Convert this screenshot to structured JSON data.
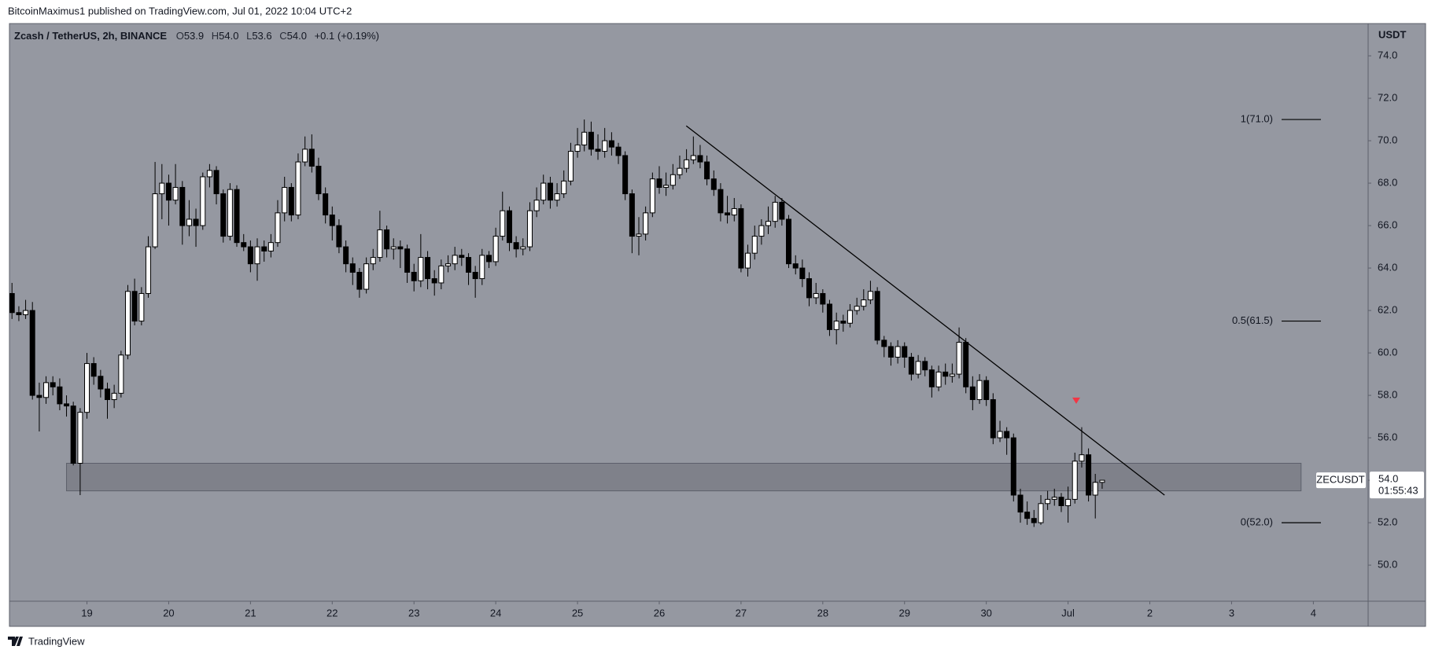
{
  "header": {
    "text": "BitcoinMaximus1 published on TradingView.com, Jul 01, 2022 10:04 UTC+2"
  },
  "chart_data": {
    "type": "candlestick",
    "legend": {
      "symbol": "Zcash / TetherUS, 2h, BINANCE",
      "items": [
        "O",
        "53.9",
        "H",
        "54.0",
        "L",
        "53.6",
        "C",
        "54.0",
        "+0.1 (+0.19%)"
      ]
    },
    "y_axis_label": "USDT",
    "colors": {
      "up": "#ffffff",
      "down": "#000000",
      "wick": "#000000",
      "background": "#9598a1"
    },
    "xlim": [
      18.052,
      34.67
    ],
    "xticks": [
      19,
      20,
      21,
      22,
      23,
      24,
      25,
      26,
      27,
      28,
      29,
      30,
      {
        "value": 31,
        "label": "Jul"
      },
      {
        "value": 32,
        "label": "2"
      },
      {
        "value": 33,
        "label": "3"
      },
      {
        "value": 34,
        "label": "4"
      }
    ],
    "ylim": [
      48.3,
      75.52
    ],
    "yticks": [
      {
        "value": 50,
        "label": "50.0"
      },
      {
        "value": 52,
        "label": "52.0"
      },
      {
        "value": 54,
        "label": "54.0"
      },
      {
        "value": 56,
        "label": "56.0"
      },
      {
        "value": 58,
        "label": "58.0"
      },
      {
        "value": 60,
        "label": "60.0"
      },
      {
        "value": 62,
        "label": "62.0"
      },
      {
        "value": 64,
        "label": "64.0"
      },
      {
        "value": 66,
        "label": "66.0"
      },
      {
        "value": 68,
        "label": "68.0"
      },
      {
        "value": 70,
        "label": "70.0"
      },
      {
        "value": 72,
        "label": "72.0"
      },
      {
        "value": 74,
        "label": "74.0"
      }
    ],
    "candles": [
      [
        18.083,
        62.8,
        63.3,
        61.6,
        61.9
      ],
      [
        18.167,
        61.9,
        62.2,
        61.5,
        61.8
      ],
      [
        18.25,
        61.8,
        62.5,
        61.6,
        62.0
      ],
      [
        18.333,
        62.0,
        62.4,
        57.8,
        58.0
      ],
      [
        18.417,
        58.0,
        58.6,
        56.3,
        57.9
      ],
      [
        18.5,
        57.9,
        58.9,
        57.6,
        58.6
      ],
      [
        18.583,
        58.6,
        58.9,
        58.0,
        58.4
      ],
      [
        18.667,
        58.4,
        58.8,
        57.3,
        57.6
      ],
      [
        18.75,
        57.6,
        58.0,
        57.0,
        57.5
      ],
      [
        18.833,
        57.5,
        57.7,
        54.7,
        54.8
      ],
      [
        18.917,
        54.8,
        57.4,
        53.3,
        57.2
      ],
      [
        19,
        57.2,
        60.0,
        56.9,
        59.5
      ],
      [
        19.083,
        59.5,
        59.8,
        58.5,
        58.9
      ],
      [
        19.167,
        58.9,
        59.2,
        57.9,
        58.3
      ],
      [
        19.25,
        58.3,
        58.6,
        56.9,
        57.8
      ],
      [
        19.333,
        57.8,
        58.5,
        57.4,
        58.1
      ],
      [
        19.417,
        58.1,
        60.1,
        57.9,
        59.9
      ],
      [
        19.5,
        59.9,
        63.2,
        59.7,
        62.9
      ],
      [
        19.583,
        62.9,
        63.5,
        61.3,
        61.5
      ],
      [
        19.667,
        61.5,
        63.1,
        61.3,
        62.8
      ],
      [
        19.75,
        62.8,
        65.5,
        62.6,
        65.0
      ],
      [
        19.833,
        65.0,
        69.0,
        64.9,
        67.5
      ],
      [
        19.917,
        67.5,
        68.9,
        66.3,
        68.0
      ],
      [
        20,
        68.0,
        68.4,
        66.0,
        67.2
      ],
      [
        20.083,
        67.2,
        68.9,
        67.0,
        67.8
      ],
      [
        20.167,
        67.8,
        68.1,
        65.1,
        66.0
      ],
      [
        20.25,
        66.0,
        67.2,
        65.5,
        66.3
      ],
      [
        20.333,
        66.3,
        66.8,
        65.0,
        66.0
      ],
      [
        20.417,
        66.0,
        68.5,
        65.8,
        68.3
      ],
      [
        20.5,
        68.3,
        68.9,
        67.8,
        68.6
      ],
      [
        20.583,
        68.6,
        68.8,
        67.0,
        67.5
      ],
      [
        20.667,
        67.5,
        67.7,
        65.2,
        65.5
      ],
      [
        20.75,
        65.5,
        68.0,
        65.3,
        67.7
      ],
      [
        20.833,
        67.7,
        67.9,
        65.0,
        65.2
      ],
      [
        20.917,
        65.2,
        65.6,
        64.8,
        65.0
      ],
      [
        21,
        65.0,
        65.3,
        63.8,
        64.2
      ],
      [
        21.083,
        64.2,
        65.4,
        63.4,
        65.0
      ],
      [
        21.167,
        65.0,
        65.3,
        64.3,
        64.8
      ],
      [
        21.25,
        64.8,
        65.6,
        64.5,
        65.2
      ],
      [
        21.333,
        65.2,
        67.2,
        65.0,
        66.6
      ],
      [
        21.417,
        66.6,
        68.3,
        66.2,
        67.8
      ],
      [
        21.5,
        67.8,
        68.0,
        66.2,
        66.5
      ],
      [
        21.583,
        66.5,
        69.4,
        66.3,
        69.0
      ],
      [
        21.667,
        69.0,
        70.2,
        68.8,
        69.6
      ],
      [
        21.75,
        69.6,
        70.3,
        68.5,
        68.8
      ],
      [
        21.833,
        68.8,
        69.2,
        67.2,
        67.5
      ],
      [
        21.917,
        67.5,
        67.8,
        66.1,
        66.5
      ],
      [
        22,
        66.5,
        66.9,
        65.3,
        66.0
      ],
      [
        22.083,
        66.0,
        66.3,
        64.7,
        65.0
      ],
      [
        22.167,
        65.0,
        65.3,
        63.8,
        64.2
      ],
      [
        22.25,
        64.2,
        64.5,
        63.2,
        63.8
      ],
      [
        22.333,
        63.8,
        64.0,
        62.6,
        63.0
      ],
      [
        22.417,
        63.0,
        64.5,
        62.8,
        64.2
      ],
      [
        22.5,
        64.2,
        64.9,
        63.9,
        64.5
      ],
      [
        22.583,
        64.5,
        66.7,
        64.3,
        65.8
      ],
      [
        22.667,
        65.8,
        66.0,
        64.5,
        64.9
      ],
      [
        22.75,
        64.9,
        65.4,
        64.4,
        65.0
      ],
      [
        22.833,
        65.0,
        65.3,
        64.0,
        64.9
      ],
      [
        22.917,
        64.9,
        65.1,
        63.3,
        63.8
      ],
      [
        23,
        63.8,
        64.2,
        62.9,
        63.4
      ],
      [
        23.083,
        63.4,
        65.6,
        63.1,
        64.5
      ],
      [
        23.167,
        64.5,
        64.8,
        63.0,
        63.5
      ],
      [
        23.25,
        63.5,
        63.9,
        62.7,
        63.3
      ],
      [
        23.333,
        63.3,
        64.4,
        63.0,
        64.1
      ],
      [
        23.417,
        64.1,
        64.6,
        63.8,
        64.2
      ],
      [
        23.5,
        64.2,
        65.0,
        63.9,
        64.6
      ],
      [
        23.583,
        64.6,
        64.9,
        64.1,
        64.5
      ],
      [
        23.667,
        64.5,
        64.7,
        63.2,
        63.8
      ],
      [
        23.75,
        63.8,
        64.1,
        62.6,
        63.5
      ],
      [
        23.833,
        63.5,
        64.9,
        63.2,
        64.6
      ],
      [
        23.917,
        64.6,
        64.8,
        64.0,
        64.3
      ],
      [
        24,
        64.3,
        65.9,
        64.1,
        65.5
      ],
      [
        24.083,
        65.5,
        67.6,
        65.3,
        66.7
      ],
      [
        24.167,
        66.7,
        66.9,
        64.8,
        65.2
      ],
      [
        24.25,
        65.2,
        65.5,
        64.5,
        64.9
      ],
      [
        24.333,
        64.9,
        65.4,
        64.6,
        65.0
      ],
      [
        24.417,
        65.0,
        67.1,
        64.8,
        66.7
      ],
      [
        24.5,
        66.7,
        67.8,
        66.4,
        67.2
      ],
      [
        24.583,
        67.2,
        68.4,
        67.0,
        68.0
      ],
      [
        24.667,
        68.0,
        68.3,
        66.8,
        67.2
      ],
      [
        24.75,
        67.2,
        68.0,
        66.9,
        67.5
      ],
      [
        24.833,
        67.5,
        68.6,
        67.3,
        68.1
      ],
      [
        24.917,
        68.1,
        69.9,
        67.9,
        69.5
      ],
      [
        25,
        69.5,
        70.6,
        69.2,
        69.8
      ],
      [
        25.083,
        69.8,
        71.0,
        69.5,
        70.4
      ],
      [
        25.167,
        70.4,
        70.9,
        69.3,
        69.6
      ],
      [
        25.25,
        69.6,
        70.3,
        69.1,
        69.5
      ],
      [
        25.333,
        69.5,
        70.6,
        69.2,
        70.0
      ],
      [
        25.417,
        70.0,
        70.4,
        69.3,
        69.7
      ],
      [
        25.5,
        69.7,
        69.9,
        68.9,
        69.3
      ],
      [
        25.583,
        69.3,
        69.5,
        67.2,
        67.5
      ],
      [
        25.667,
        67.5,
        67.7,
        64.7,
        65.5
      ],
      [
        25.75,
        65.5,
        66.4,
        64.6,
        65.6
      ],
      [
        25.833,
        65.6,
        66.9,
        65.3,
        66.6
      ],
      [
        25.917,
        66.6,
        68.5,
        66.4,
        68.2
      ],
      [
        26,
        68.2,
        68.8,
        67.5,
        67.8
      ],
      [
        26.083,
        67.8,
        68.5,
        67.4,
        67.9
      ],
      [
        26.167,
        67.9,
        68.9,
        67.7,
        68.4
      ],
      [
        26.25,
        68.4,
        69.3,
        68.2,
        68.7
      ],
      [
        26.333,
        68.7,
        69.6,
        68.5,
        69.1
      ],
      [
        26.417,
        69.1,
        70.2,
        68.9,
        69.3
      ],
      [
        26.5,
        69.3,
        69.8,
        68.7,
        69.0
      ],
      [
        26.583,
        69.0,
        69.3,
        67.9,
        68.2
      ],
      [
        26.667,
        68.2,
        68.6,
        67.4,
        67.7
      ],
      [
        26.75,
        67.7,
        68.0,
        66.2,
        66.6
      ],
      [
        26.833,
        66.6,
        67.4,
        66.1,
        66.5
      ],
      [
        26.917,
        66.5,
        67.3,
        66.2,
        66.8
      ],
      [
        27,
        66.8,
        67.0,
        63.8,
        64.0
      ],
      [
        27.083,
        64.0,
        65.1,
        63.6,
        64.7
      ],
      [
        27.167,
        64.7,
        66.0,
        64.4,
        65.5
      ],
      [
        27.25,
        65.5,
        66.3,
        65.1,
        66.0
      ],
      [
        27.333,
        66.0,
        66.9,
        65.6,
        66.2
      ],
      [
        27.417,
        66.2,
        67.4,
        65.9,
        67.1
      ],
      [
        27.5,
        67.1,
        67.3,
        66.0,
        66.3
      ],
      [
        27.583,
        66.3,
        66.5,
        64.0,
        64.2
      ],
      [
        27.667,
        64.2,
        64.6,
        63.7,
        64.0
      ],
      [
        27.75,
        64.0,
        64.4,
        63.1,
        63.5
      ],
      [
        27.833,
        63.5,
        63.8,
        62.2,
        62.6
      ],
      [
        27.917,
        62.6,
        63.3,
        62.3,
        62.8
      ],
      [
        28,
        62.8,
        63.0,
        61.9,
        62.3
      ],
      [
        28.083,
        62.3,
        62.5,
        60.8,
        61.1
      ],
      [
        28.167,
        61.1,
        61.9,
        60.4,
        61.5
      ],
      [
        28.25,
        61.5,
        61.8,
        61.0,
        61.4
      ],
      [
        28.333,
        61.4,
        62.3,
        61.2,
        62.0
      ],
      [
        28.417,
        62.0,
        62.6,
        61.8,
        62.2
      ],
      [
        28.5,
        62.2,
        63.0,
        62.0,
        62.5
      ],
      [
        28.583,
        62.5,
        63.4,
        62.3,
        62.9
      ],
      [
        28.667,
        62.9,
        63.1,
        60.4,
        60.6
      ],
      [
        28.75,
        60.6,
        60.8,
        59.8,
        60.3
      ],
      [
        28.833,
        60.3,
        60.5,
        59.4,
        59.8
      ],
      [
        28.917,
        59.8,
        60.6,
        59.5,
        60.3
      ],
      [
        29,
        60.3,
        60.5,
        59.3,
        59.8
      ],
      [
        29.083,
        59.8,
        60.0,
        58.7,
        59.0
      ],
      [
        29.167,
        59.0,
        59.9,
        58.8,
        59.6
      ],
      [
        29.25,
        59.6,
        59.8,
        58.9,
        59.2
      ],
      [
        29.333,
        59.2,
        59.4,
        57.9,
        58.4
      ],
      [
        29.417,
        58.4,
        59.4,
        58.2,
        59.1
      ],
      [
        29.5,
        59.1,
        59.5,
        58.5,
        58.9
      ],
      [
        29.583,
        58.9,
        59.5,
        58.6,
        59.0
      ],
      [
        29.667,
        59.0,
        61.2,
        58.8,
        60.5
      ],
      [
        29.75,
        60.5,
        60.7,
        58.1,
        58.4
      ],
      [
        29.833,
        58.4,
        58.9,
        57.3,
        57.8
      ],
      [
        29.917,
        57.8,
        59.0,
        57.6,
        58.7
      ],
      [
        30,
        58.7,
        58.9,
        57.5,
        57.8
      ],
      [
        30.083,
        57.8,
        58.1,
        55.7,
        56.0
      ],
      [
        30.167,
        56.0,
        56.8,
        55.8,
        56.3
      ],
      [
        30.25,
        56.3,
        56.5,
        55.2,
        56.0
      ],
      [
        30.333,
        56.0,
        56.2,
        53.0,
        53.3
      ],
      [
        30.417,
        53.3,
        53.6,
        52.0,
        52.5
      ],
      [
        30.5,
        52.5,
        53.0,
        51.9,
        52.2
      ],
      [
        30.583,
        52.2,
        52.6,
        51.8,
        52.0
      ],
      [
        30.667,
        52.0,
        53.3,
        51.9,
        52.9
      ],
      [
        30.75,
        52.9,
        53.5,
        52.6,
        53.1
      ],
      [
        30.833,
        53.1,
        53.6,
        52.8,
        53.2
      ],
      [
        30.917,
        53.2,
        53.4,
        52.5,
        52.8
      ],
      [
        31,
        52.8,
        53.7,
        52.0,
        53.1
      ],
      [
        31.083,
        53.1,
        55.3,
        52.9,
        54.9
      ],
      [
        31.167,
        54.9,
        56.5,
        54.6,
        55.2
      ],
      [
        31.25,
        55.2,
        55.5,
        53.0,
        53.3
      ],
      [
        31.333,
        53.3,
        54.3,
        52.2,
        53.9
      ],
      [
        31.417,
        53.9,
        54.0,
        53.6,
        54.0
      ]
    ],
    "zone": {
      "x": [
        18.75,
        33.85
      ],
      "y": [
        53.5,
        54.8
      ],
      "color": "#6e7079"
    },
    "trendline": {
      "x": [
        26.33,
        32.18
      ],
      "y": [
        70.7,
        53.3
      ],
      "color": "#000000"
    },
    "fib_levels": [
      {
        "label": "1(71.0)",
        "value": 71
      },
      {
        "label": "0.5(61.5)",
        "value": 61.5
      },
      {
        "label": "0(52.0)",
        "value": 52
      }
    ],
    "marker": {
      "x": 31.1,
      "y": 57.75,
      "color": "#f23645"
    },
    "price_label": {
      "symbol": "ZECUSDT",
      "value": {
        "value": 54,
        "label": "54.0"
      },
      "countdown": "01:55:43"
    }
  },
  "footer": {
    "brand": "TradingView"
  }
}
